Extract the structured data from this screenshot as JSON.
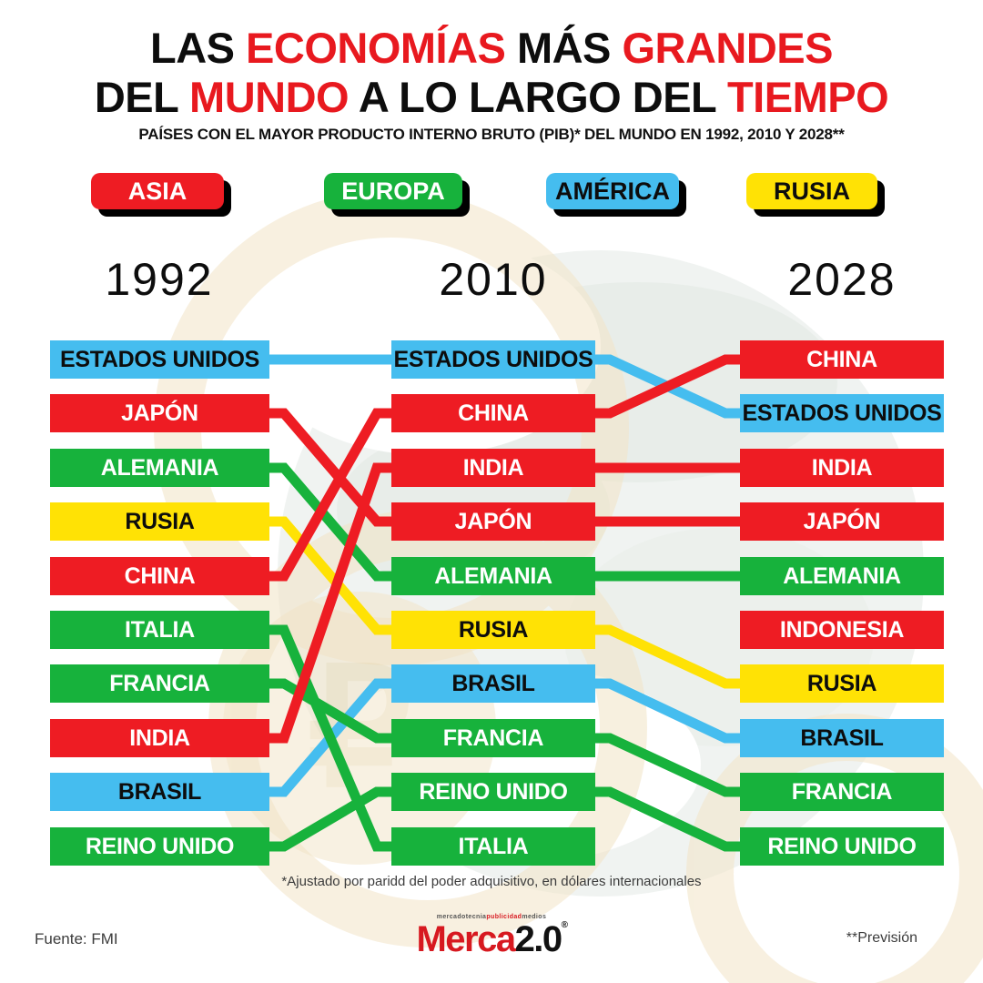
{
  "title": {
    "l1a": "LAS ",
    "l1b": "ECONOMÍAS",
    "l1c": " MÁS ",
    "l1d": "GRANDES",
    "l2a": "DEL ",
    "l2b": "MUNDO",
    "l2c": " A LO LARGO DEL ",
    "l2d": "TIEMPO",
    "subtitle": "PAÍSES CON EL MAYOR PRODUCTO INTERNO BRUTO (PIB)* DEL MUNDO EN 1992, 2010 Y 2028**"
  },
  "legend": {
    "asia": "ASIA",
    "europa": "EUROPA",
    "america": "AMÉRICA",
    "rusia": "RUSIA"
  },
  "region_colors": {
    "asia": "#ee1c23",
    "europa": "#17b23c",
    "america": "#45bdef",
    "rusia": "#ffe205"
  },
  "years": [
    "1992",
    "2010",
    "2028"
  ],
  "columns": [
    {
      "year": "1992",
      "countries": [
        {
          "name": "ESTADOS UNIDOS",
          "region": "america"
        },
        {
          "name": "JAPÓN",
          "region": "asia"
        },
        {
          "name": "ALEMANIA",
          "region": "europa"
        },
        {
          "name": "RUSIA",
          "region": "rusia"
        },
        {
          "name": "CHINA",
          "region": "asia"
        },
        {
          "name": "ITALIA",
          "region": "europa"
        },
        {
          "name": "FRANCIA",
          "region": "europa"
        },
        {
          "name": "INDIA",
          "region": "asia"
        },
        {
          "name": "BRASIL",
          "region": "america"
        },
        {
          "name": "REINO UNIDO",
          "region": "europa"
        }
      ]
    },
    {
      "year": "2010",
      "countries": [
        {
          "name": "ESTADOS UNIDOS",
          "region": "america"
        },
        {
          "name": "CHINA",
          "region": "asia"
        },
        {
          "name": "INDIA",
          "region": "asia"
        },
        {
          "name": "JAPÓN",
          "region": "asia"
        },
        {
          "name": "ALEMANIA",
          "region": "europa"
        },
        {
          "name": "RUSIA",
          "region": "rusia"
        },
        {
          "name": "BRASIL",
          "region": "america"
        },
        {
          "name": "FRANCIA",
          "region": "europa"
        },
        {
          "name": "REINO UNIDO",
          "region": "europa"
        },
        {
          "name": "ITALIA",
          "region": "europa"
        }
      ]
    },
    {
      "year": "2028",
      "countries": [
        {
          "name": "CHINA",
          "region": "asia"
        },
        {
          "name": "ESTADOS UNIDOS",
          "region": "america"
        },
        {
          "name": "INDIA",
          "region": "asia"
        },
        {
          "name": "JAPÓN",
          "region": "asia"
        },
        {
          "name": "ALEMANIA",
          "region": "europa"
        },
        {
          "name": "INDONESIA",
          "region": "asia"
        },
        {
          "name": "RUSIA",
          "region": "rusia"
        },
        {
          "name": "BRASIL",
          "region": "america"
        },
        {
          "name": "FRANCIA",
          "region": "europa"
        },
        {
          "name": "REINO UNIDO",
          "region": "europa"
        }
      ]
    }
  ],
  "connections": [
    {
      "gap": 0,
      "from": 1,
      "to": 1,
      "region": "america",
      "country": "ESTADOS UNIDOS"
    },
    {
      "gap": 0,
      "from": 2,
      "to": 4,
      "region": "asia",
      "country": "JAPÓN"
    },
    {
      "gap": 0,
      "from": 3,
      "to": 5,
      "region": "europa",
      "country": "ALEMANIA"
    },
    {
      "gap": 0,
      "from": 4,
      "to": 6,
      "region": "rusia",
      "country": "RUSIA"
    },
    {
      "gap": 0,
      "from": 5,
      "to": 2,
      "region": "asia",
      "country": "CHINA"
    },
    {
      "gap": 0,
      "from": 6,
      "to": 10,
      "region": "europa",
      "country": "ITALIA"
    },
    {
      "gap": 0,
      "from": 7,
      "to": 8,
      "region": "europa",
      "country": "FRANCIA"
    },
    {
      "gap": 0,
      "from": 8,
      "to": 3,
      "region": "asia",
      "country": "INDIA"
    },
    {
      "gap": 0,
      "from": 9,
      "to": 7,
      "region": "america",
      "country": "BRASIL"
    },
    {
      "gap": 0,
      "from": 10,
      "to": 9,
      "region": "europa",
      "country": "REINO UNIDO"
    },
    {
      "gap": 1,
      "from": 1,
      "to": 2,
      "region": "america",
      "country": "ESTADOS UNIDOS"
    },
    {
      "gap": 1,
      "from": 2,
      "to": 1,
      "region": "asia",
      "country": "CHINA"
    },
    {
      "gap": 1,
      "from": 3,
      "to": 3,
      "region": "asia",
      "country": "INDIA"
    },
    {
      "gap": 1,
      "from": 4,
      "to": 4,
      "region": "asia",
      "country": "JAPÓN"
    },
    {
      "gap": 1,
      "from": 5,
      "to": 5,
      "region": "europa",
      "country": "ALEMANIA"
    },
    {
      "gap": 1,
      "from": 6,
      "to": 7,
      "region": "rusia",
      "country": "RUSIA"
    },
    {
      "gap": 1,
      "from": 7,
      "to": 8,
      "region": "america",
      "country": "BRASIL"
    },
    {
      "gap": 1,
      "from": 8,
      "to": 9,
      "region": "europa",
      "country": "FRANCIA"
    },
    {
      "gap": 1,
      "from": 9,
      "to": 10,
      "region": "europa",
      "country": "REINO UNIDO"
    }
  ],
  "footer": {
    "footnote": "*Ajustado por paridd del poder adquisitivo, en dólares internacionales",
    "source": "Fuente: FMI",
    "forecast_note": "**Previsión",
    "logo": {
      "tagline_a": "mercadotecnia",
      "tagline_b": "publicidad",
      "tagline_c": "medios",
      "word_a": "Merca",
      "word_b": "2.0",
      "registered": "®"
    }
  },
  "chart_data": {
    "type": "table",
    "title": "Las economías más grandes del mundo a lo largo del tiempo",
    "subtitle": "Países con el mayor Producto Interno Bruto (PIB) del mundo en 1992, 2010 y 2028",
    "legend_regions": [
      "ASIA",
      "EUROPA",
      "AMÉRICA",
      "RUSIA"
    ],
    "columns": [
      "1992",
      "2010",
      "2028"
    ],
    "rankings": {
      "1992": [
        "ESTADOS UNIDOS",
        "JAPÓN",
        "ALEMANIA",
        "RUSIA",
        "CHINA",
        "ITALIA",
        "FRANCIA",
        "INDIA",
        "BRASIL",
        "REINO UNIDO"
      ],
      "2010": [
        "ESTADOS UNIDOS",
        "CHINA",
        "INDIA",
        "JAPÓN",
        "ALEMANIA",
        "RUSIA",
        "BRASIL",
        "FRANCIA",
        "REINO UNIDO",
        "ITALIA"
      ],
      "2028": [
        "CHINA",
        "ESTADOS UNIDOS",
        "INDIA",
        "JAPÓN",
        "ALEMANIA",
        "INDONESIA",
        "RUSIA",
        "BRASIL",
        "FRANCIA",
        "REINO UNIDO"
      ]
    }
  }
}
